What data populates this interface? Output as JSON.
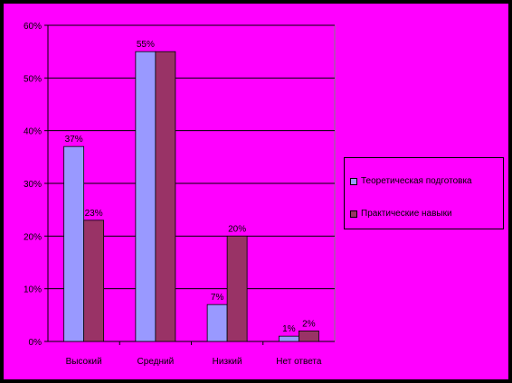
{
  "chart_data": {
    "type": "bar",
    "categories": [
      "Высокий",
      "Средний",
      "Низкий",
      "Нет ответа"
    ],
    "series": [
      {
        "name": "Теоретическая подготовка",
        "values": [
          37,
          55,
          7,
          1
        ],
        "labels": [
          "37%",
          "55%",
          "7%",
          "1%"
        ],
        "color": "#9999ff"
      },
      {
        "name": "Практические навыки",
        "values": [
          23,
          55,
          20,
          2
        ],
        "labels": [
          "23%",
          "",
          "20%",
          "2%"
        ],
        "color": "#993366"
      }
    ],
    "ylim": [
      0,
      60
    ],
    "yticks": [
      0,
      10,
      20,
      30,
      40,
      50,
      60
    ],
    "ytick_labels": [
      "0%",
      "10%",
      "20%",
      "30%",
      "40%",
      "50%",
      "60%"
    ],
    "title": "",
    "xlabel": "",
    "ylabel": "",
    "grid": true,
    "legend_position": "right"
  },
  "colors": {
    "page_background": "#000000",
    "chart_background": "#ff00ff",
    "plot_background": "#ff00ff",
    "gridline": "#000000",
    "axis": "#000000"
  }
}
